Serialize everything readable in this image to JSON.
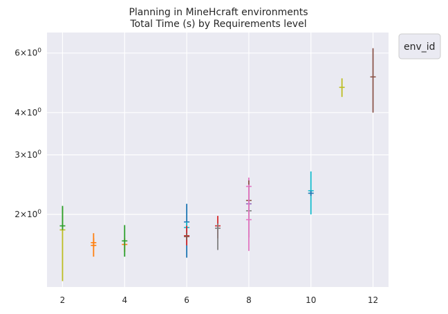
{
  "chart_data": {
    "type": "errorbar",
    "title_line1": "Planning in MineHcraft environments",
    "title_line2": "Total Time (s) by Requirements level",
    "xlabel": "",
    "ylabel": "",
    "yscale": "log",
    "xlim": [
      1.5,
      12.5
    ],
    "ylim": [
      1.22,
      6.9
    ],
    "x_ticks": [
      2,
      4,
      6,
      8,
      10,
      12
    ],
    "x_tick_labels": [
      "2",
      "4",
      "6",
      "8",
      "10",
      "12"
    ],
    "y_ticks": [
      2,
      3,
      4,
      6
    ],
    "y_tick_labels": [
      {
        "base": "2",
        "exp": "0"
      },
      {
        "base": "3",
        "exp": "0"
      },
      {
        "base": "4",
        "exp": "0"
      },
      {
        "base": "6",
        "exp": "0"
      }
    ],
    "grid": true,
    "legend": {
      "title": "env_id",
      "placement": "outside-top-right"
    },
    "points": [
      {
        "x": 2,
        "y": 1.8,
        "low": 1.27,
        "high": 2.1,
        "color": "#bcbd22"
      },
      {
        "x": 2,
        "y": 1.85,
        "low": 1.8,
        "high": 2.12,
        "color": "#2ca02c"
      },
      {
        "x": 3,
        "y": 1.62,
        "low": 1.5,
        "high": 1.76,
        "color": "#ff7f0e"
      },
      {
        "x": 3,
        "y": 1.65,
        "low": 1.6,
        "high": 1.7,
        "color": "#ff7f0e"
      },
      {
        "x": 4,
        "y": 1.63,
        "low": 1.55,
        "high": 1.7,
        "color": "#ff7f0e"
      },
      {
        "x": 4,
        "y": 1.67,
        "low": 1.5,
        "high": 1.86,
        "color": "#2ca02c"
      },
      {
        "x": 6,
        "y": 1.9,
        "low": 1.49,
        "high": 2.15,
        "color": "#1f77b4"
      },
      {
        "x": 6,
        "y": 1.83,
        "low": 1.7,
        "high": 1.9,
        "color": "#17becf"
      },
      {
        "x": 6,
        "y": 1.73,
        "low": 1.62,
        "high": 1.85,
        "color": "#d62728"
      },
      {
        "x": 6,
        "y": 1.72,
        "low": 1.68,
        "high": 1.76,
        "color": "#8c564b"
      },
      {
        "x": 7,
        "y": 1.85,
        "low": 1.7,
        "high": 1.98,
        "color": "#d62728"
      },
      {
        "x": 7,
        "y": 1.82,
        "low": 1.57,
        "high": 1.88,
        "color": "#7f7f7f"
      },
      {
        "x": 8,
        "y": 2.42,
        "low": 2.12,
        "high": 2.57,
        "color": "#e377c2"
      },
      {
        "x": 8,
        "y": 2.2,
        "low": 1.95,
        "high": 2.52,
        "color": "#8c564b"
      },
      {
        "x": 8,
        "y": 2.15,
        "low": 2.05,
        "high": 2.25,
        "color": "#9467bd"
      },
      {
        "x": 8,
        "y": 2.05,
        "low": 1.71,
        "high": 2.38,
        "color": "#7f7f7f"
      },
      {
        "x": 8,
        "y": 1.93,
        "low": 1.56,
        "high": 2.45,
        "color": "#e377c2"
      },
      {
        "x": 10,
        "y": 2.35,
        "low": 2.0,
        "high": 2.68,
        "color": "#17becf"
      },
      {
        "x": 10,
        "y": 2.31,
        "low": 2.27,
        "high": 2.35,
        "color": "#1f77b4"
      },
      {
        "x": 11,
        "y": 4.75,
        "low": 4.45,
        "high": 5.05,
        "color": "#bcbd22"
      },
      {
        "x": 12,
        "y": 5.1,
        "low": 4.0,
        "high": 6.2,
        "color": "#8c564b"
      }
    ]
  }
}
